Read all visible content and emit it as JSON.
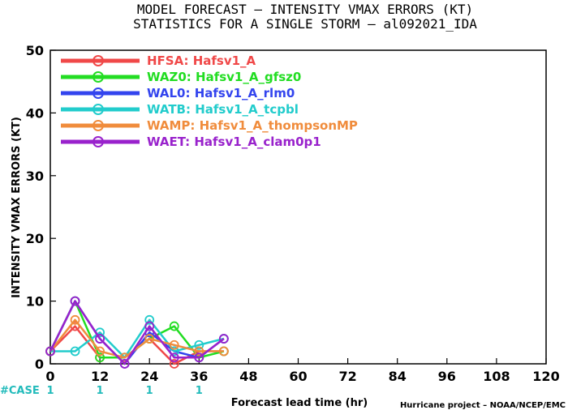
{
  "chart_data": {
    "type": "line",
    "title": "MODEL FORECAST – INTENSITY VMAX ERRORS (KT)",
    "subtitle": "STATISTICS FOR A SINGLE STORM – al092021_IDA",
    "xlabel": "Forecast lead time (hr)",
    "ylabel": "INTENSITY VMAX ERRORS (KT)",
    "xlim": [
      0,
      120
    ],
    "ylim": [
      0,
      50
    ],
    "xticks": [
      "0",
      "12",
      "24",
      "36",
      "48",
      "60",
      "72",
      "84",
      "96",
      "108",
      "120"
    ],
    "yticks": [
      "0",
      "10",
      "20",
      "30",
      "40",
      "50"
    ],
    "grid": false,
    "legend_position": "top-left",
    "x": [
      0,
      6,
      12,
      18,
      24,
      30,
      36,
      42
    ],
    "series": [
      {
        "name": "HFSA: Hafsv1_A",
        "color": "#f04848",
        "values": [
          2,
          6,
          1,
          1,
          4,
          0,
          2,
          2
        ]
      },
      {
        "name": "WAZ0: Hafsv1_A_gfsz0",
        "color": "#22dd22",
        "values": [
          2,
          10,
          1,
          1,
          4,
          6,
          1,
          2
        ]
      },
      {
        "name": "WAL0: Hafsv1_A_rlm0",
        "color": "#3344ee",
        "values": [
          2,
          10,
          4,
          0,
          5,
          2,
          1,
          4
        ]
      },
      {
        "name": "WATB: Hafsv1_A_tcpbl",
        "color": "#22cccc",
        "values": [
          2,
          2,
          5,
          1,
          7,
          2,
          3,
          4
        ]
      },
      {
        "name": "WAMP: Hafsv1_A_thompsonMP",
        "color": "#f08c3c",
        "values": [
          2,
          7,
          2,
          1,
          4,
          3,
          2,
          2
        ]
      },
      {
        "name": "WAET: Hafsv1_A_clam0p1",
        "color": "#9922cc",
        "values": [
          2,
          10,
          4,
          0,
          6,
          1,
          1,
          4
        ]
      }
    ],
    "case_label": "#CASE",
    "case_color": "#22bbbb",
    "case_counts": [
      {
        "x": 0,
        "label": "1"
      },
      {
        "x": 12,
        "label": "1"
      },
      {
        "x": 24,
        "label": "1"
      },
      {
        "x": 36,
        "label": "1"
      }
    ],
    "credit": "Hurricane project – NOAA/NCEP/EMC"
  }
}
